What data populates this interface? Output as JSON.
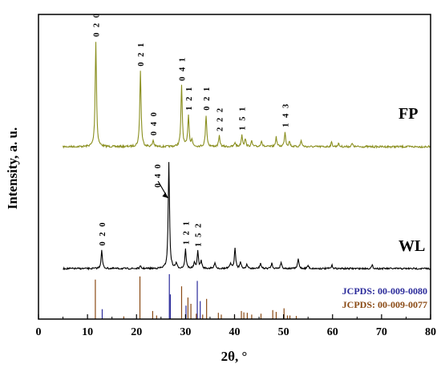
{
  "chart_data": {
    "type": "line",
    "xlabel": "2θ, °",
    "ylabel": "Intensity, a. u.",
    "xlim": [
      0,
      80
    ],
    "xticks": [
      0,
      10,
      20,
      30,
      40,
      50,
      60,
      70,
      80
    ],
    "grid": false,
    "colors": {
      "FP": "#8a8f1f",
      "WL": "#000000",
      "ref_0080": "#2a2a9a",
      "ref_0077": "#8a4a14"
    },
    "series": [
      {
        "name": "FP",
        "peaks": [
          {
            "x": 11.7,
            "h": 1.0
          },
          {
            "x": 20.8,
            "h": 0.72
          },
          {
            "x": 23.4,
            "h": 0.06
          },
          {
            "x": 29.2,
            "h": 0.58
          },
          {
            "x": 30.6,
            "h": 0.3
          },
          {
            "x": 31.3,
            "h": 0.06
          },
          {
            "x": 34.2,
            "h": 0.3
          },
          {
            "x": 36.9,
            "h": 0.1
          },
          {
            "x": 40.1,
            "h": 0.04
          },
          {
            "x": 41.5,
            "h": 0.11
          },
          {
            "x": 42.2,
            "h": 0.07
          },
          {
            "x": 43.5,
            "h": 0.05
          },
          {
            "x": 45.5,
            "h": 0.06
          },
          {
            "x": 48.5,
            "h": 0.09
          },
          {
            "x": 50.3,
            "h": 0.14
          },
          {
            "x": 51.2,
            "h": 0.05
          },
          {
            "x": 53.6,
            "h": 0.06
          },
          {
            "x": 59.8,
            "h": 0.04
          },
          {
            "x": 61.2,
            "h": 0.03
          },
          {
            "x": 64.0,
            "h": 0.03
          }
        ]
      },
      {
        "name": "WL",
        "peaks": [
          {
            "x": 12.9,
            "h": 0.17
          },
          {
            "x": 20.8,
            "h": 0.02
          },
          {
            "x": 26.6,
            "h": 1.0
          },
          {
            "x": 28.1,
            "h": 0.05
          },
          {
            "x": 30.0,
            "h": 0.18
          },
          {
            "x": 31.8,
            "h": 0.05
          },
          {
            "x": 32.5,
            "h": 0.16
          },
          {
            "x": 33.2,
            "h": 0.07
          },
          {
            "x": 36.0,
            "h": 0.06
          },
          {
            "x": 39.2,
            "h": 0.05
          },
          {
            "x": 40.1,
            "h": 0.2
          },
          {
            "x": 41.2,
            "h": 0.06
          },
          {
            "x": 42.5,
            "h": 0.04
          },
          {
            "x": 45.3,
            "h": 0.05
          },
          {
            "x": 47.6,
            "h": 0.05
          },
          {
            "x": 49.5,
            "h": 0.06
          },
          {
            "x": 53.0,
            "h": 0.09
          },
          {
            "x": 55.0,
            "h": 0.03
          },
          {
            "x": 59.9,
            "h": 0.03
          },
          {
            "x": 68.1,
            "h": 0.03
          }
        ]
      }
    ],
    "peak_labels": [
      {
        "series": "FP",
        "x": 11.7,
        "text": "0 2 0"
      },
      {
        "series": "FP",
        "x": 20.8,
        "text": "0 2 1"
      },
      {
        "series": "FP",
        "x": 23.4,
        "text": "0 4 0"
      },
      {
        "series": "FP",
        "x": 29.2,
        "text": "0 4 1"
      },
      {
        "series": "FP",
        "x": 30.6,
        "text": "1 2 1"
      },
      {
        "series": "FP",
        "x": 34.2,
        "text": "0 2 1"
      },
      {
        "series": "FP",
        "x": 36.9,
        "text": "2 2 2"
      },
      {
        "series": "FP",
        "x": 41.5,
        "text": "1 5 1"
      },
      {
        "series": "FP",
        "x": 50.3,
        "text": "1 4 3"
      },
      {
        "series": "WL",
        "x": 12.9,
        "text": "0 2 0"
      },
      {
        "series": "WL",
        "x": 26.6,
        "text": "0 4 0"
      },
      {
        "series": "WL",
        "x": 30.0,
        "text": "1 2 1"
      },
      {
        "series": "WL",
        "x": 32.5,
        "text": "1 5 2"
      }
    ],
    "reference_patterns": [
      {
        "name": "JCPDS: 00-009-0080",
        "color_key": "ref_0080",
        "lines": [
          {
            "x": 13.0,
            "h": 0.22
          },
          {
            "x": 26.7,
            "h": 1.0
          },
          {
            "x": 26.9,
            "h": 0.55
          },
          {
            "x": 30.1,
            "h": 0.3
          },
          {
            "x": 32.4,
            "h": 0.85
          },
          {
            "x": 33.0,
            "h": 0.4
          }
        ]
      },
      {
        "name": "JCPDS: 00-009-0077",
        "color_key": "ref_0077",
        "lines": [
          {
            "x": 11.6,
            "h": 0.88
          },
          {
            "x": 17.4,
            "h": 0.06
          },
          {
            "x": 20.7,
            "h": 0.95
          },
          {
            "x": 23.3,
            "h": 0.18
          },
          {
            "x": 24.1,
            "h": 0.08
          },
          {
            "x": 29.2,
            "h": 0.73
          },
          {
            "x": 30.5,
            "h": 0.48
          },
          {
            "x": 31.1,
            "h": 0.34
          },
          {
            "x": 32.2,
            "h": 0.12
          },
          {
            "x": 33.5,
            "h": 0.1
          },
          {
            "x": 34.3,
            "h": 0.45
          },
          {
            "x": 36.7,
            "h": 0.14
          },
          {
            "x": 37.3,
            "h": 0.1
          },
          {
            "x": 40.0,
            "h": 0.08
          },
          {
            "x": 41.4,
            "h": 0.18
          },
          {
            "x": 41.9,
            "h": 0.15
          },
          {
            "x": 42.6,
            "h": 0.14
          },
          {
            "x": 43.5,
            "h": 0.1
          },
          {
            "x": 45.4,
            "h": 0.12
          },
          {
            "x": 47.8,
            "h": 0.2
          },
          {
            "x": 48.5,
            "h": 0.16
          },
          {
            "x": 50.1,
            "h": 0.24
          },
          {
            "x": 50.8,
            "h": 0.08
          },
          {
            "x": 51.3,
            "h": 0.08
          },
          {
            "x": 52.6,
            "h": 0.07
          }
        ]
      }
    ]
  }
}
